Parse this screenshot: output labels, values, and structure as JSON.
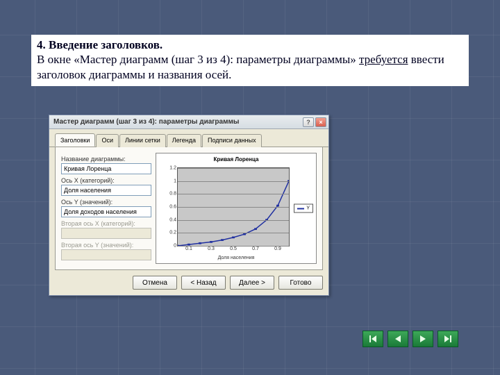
{
  "slide_text": {
    "heading": "4. Введение заголовков.",
    "body_before": "В окне «Мастер диаграмм (шаг 3 из 4): параметры диаграммы» ",
    "body_underlined": "требуется",
    "body_after": " ввести заголовок диаграммы и названия осей."
  },
  "dialog": {
    "title": "Мастер диаграмм (шаг 3 из 4): параметры диаграммы",
    "help_glyph": "?",
    "close_glyph": "×",
    "tabs": [
      "Заголовки",
      "Оси",
      "Линии сетки",
      "Легенда",
      "Подписи данных"
    ],
    "active_tab": 0,
    "fields": {
      "chart_title_label": "Название диаграммы:",
      "chart_title_value": "Кривая Лоренца",
      "axis_x_label": "Ось X (категорий):",
      "axis_x_value": "Доля населения",
      "axis_y_label": "Ось Y (значений):",
      "axis_y_value": "Доля доходов населения",
      "axis_x2_label": "Вторая ось X (категорий):",
      "axis_y2_label": "Вторая ось Y (значений):"
    },
    "buttons": {
      "cancel": "Отмена",
      "back": "< Назад",
      "next": "Далее >",
      "finish": "Готово"
    }
  },
  "chart": {
    "type": "line",
    "title": "Кривая Лоренца",
    "xlabel": "Доля населения",
    "ylabel": "Доля доходов населения",
    "legend_label": "Y",
    "series_color": "#2030a0",
    "plot_bg": "#c8c8c8",
    "grid_color": "#888888",
    "line_width": 1.5,
    "ylim": [
      0,
      1.2
    ],
    "yticks": [
      0,
      0.2,
      0.4,
      0.6,
      0.8,
      1.0,
      1.2
    ],
    "x_values": [
      0,
      0.1,
      0.2,
      0.3,
      0.4,
      0.5,
      0.6,
      0.7,
      0.8,
      0.9,
      1.0
    ],
    "y_values": [
      0,
      0.02,
      0.04,
      0.06,
      0.09,
      0.13,
      0.18,
      0.26,
      0.4,
      0.62,
      1.0
    ],
    "xticks": [
      0.1,
      0.3,
      0.5,
      0.7,
      0.9
    ]
  },
  "nav_color": "#1a8a3a"
}
